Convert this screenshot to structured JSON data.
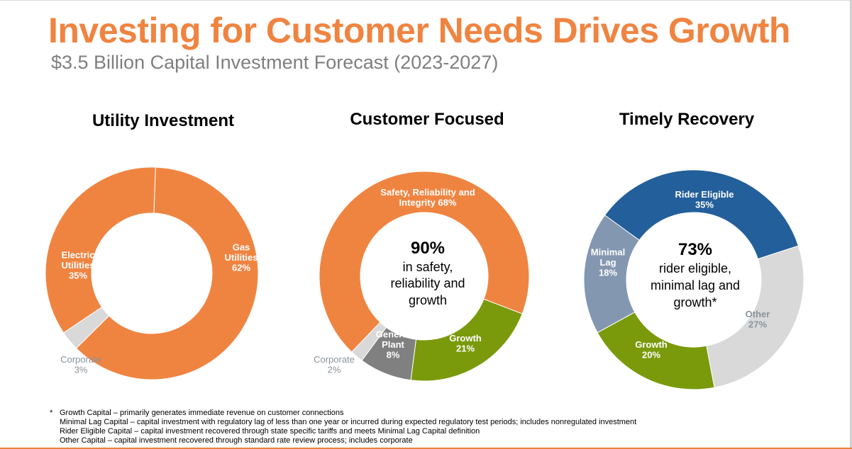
{
  "header": {
    "title": "Investing for Customer Needs Drives Growth",
    "subtitle": "$3.5 Billion Capital Investment Forecast (2023-2027)"
  },
  "colors": {
    "orange": "#ef8441",
    "light_gray": "#d9d9d9",
    "dark_gray": "#808080",
    "green": "#7a9a0b",
    "blue": "#235f9a",
    "slate": "#8497b0",
    "outside_label": "#8a939c"
  },
  "chart_data": [
    {
      "type": "pie",
      "title": "Utility Investment",
      "donut": true,
      "center_text": [],
      "slices": [
        {
          "name": "Gas Utilities",
          "value": 62,
          "label_lines": [
            "Gas",
            "Utilities",
            "62%"
          ],
          "color": "#ef8441",
          "label_style": "inside"
        },
        {
          "name": "Corporate",
          "value": 3,
          "label_lines": [
            "Corporate",
            "3%"
          ],
          "color": "#d9d9d9",
          "label_style": "outside"
        },
        {
          "name": "Electric Utilities",
          "value": 35,
          "label_lines": [
            "Electric",
            "Utilities",
            "35%"
          ],
          "color": "#ef8441",
          "label_style": "inside"
        }
      ]
    },
    {
      "type": "pie",
      "title": "Customer Focused",
      "donut": true,
      "center_text": [
        "90%",
        "in safety,",
        "reliability and",
        "growth"
      ],
      "slices": [
        {
          "name": "Growth",
          "value": 21,
          "label_lines": [
            "Growth",
            "21%"
          ],
          "color": "#7a9a0b",
          "label_style": "inside"
        },
        {
          "name": "General Plant",
          "value": 8,
          "label_lines": [
            "General",
            "Plant",
            "8%"
          ],
          "color": "#808080",
          "label_style": "inside"
        },
        {
          "name": "Corporate",
          "value": 2,
          "label_lines": [
            "Corporate",
            "2%"
          ],
          "color": "#d9d9d9",
          "label_style": "outside"
        },
        {
          "name": "Safety, Reliability and Integrity",
          "value": 68,
          "label_lines": [
            "Safety, Reliability and",
            "Integrity 68%"
          ],
          "color": "#ef8441",
          "label_style": "inside"
        }
      ]
    },
    {
      "type": "pie",
      "title": "Timely Recovery",
      "donut": true,
      "center_text": [
        "73%",
        "rider eligible,",
        "minimal lag and",
        "growth*"
      ],
      "slices": [
        {
          "name": "Rider Eligible",
          "value": 35,
          "label_lines": [
            "Rider Eligible",
            "35%"
          ],
          "color": "#235f9a",
          "label_style": "inside"
        },
        {
          "name": "Other",
          "value": 27,
          "label_lines": [
            "Other",
            "27%"
          ],
          "color": "#d9d9d9",
          "label_style": "inside-gray"
        },
        {
          "name": "Growth",
          "value": 20,
          "label_lines": [
            "Growth",
            "20%"
          ],
          "color": "#7a9a0b",
          "label_style": "inside"
        },
        {
          "name": "Minimal Lag",
          "value": 18,
          "label_lines": [
            "Minimal",
            "Lag",
            "18%"
          ],
          "color": "#8497b0",
          "label_style": "inside"
        }
      ]
    }
  ],
  "footnotes": {
    "marker": "*",
    "lines": [
      "Growth Capital – primarily generates immediate revenue on customer connections",
      "Minimal Lag Capital – capital investment with regulatory lag of less than one year or incurred during expected regulatory test periods; includes nonregulated investment",
      "Rider Eligible Capital – capital investment recovered through state specific tariffs and meets Minimal Lag Capital definition",
      "Other Capital – capital investment recovered through standard rate review process; includes corporate"
    ]
  }
}
